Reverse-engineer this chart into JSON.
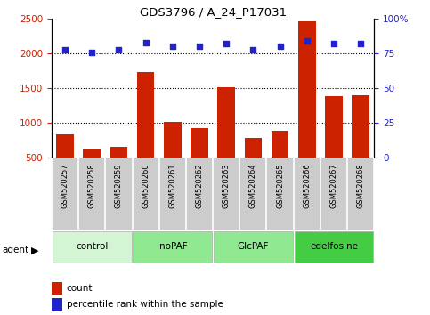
{
  "title": "GDS3796 / A_24_P17031",
  "samples": [
    "GSM520257",
    "GSM520258",
    "GSM520259",
    "GSM520260",
    "GSM520261",
    "GSM520262",
    "GSM520263",
    "GSM520264",
    "GSM520265",
    "GSM520266",
    "GSM520267",
    "GSM520268"
  ],
  "counts": [
    840,
    610,
    660,
    1730,
    1020,
    920,
    1510,
    780,
    890,
    2460,
    1390,
    1400
  ],
  "percentile_ranks": [
    78,
    76,
    78,
    83,
    80,
    80,
    82,
    78,
    80,
    84,
    82,
    82
  ],
  "groups": [
    {
      "label": "control",
      "start": 0,
      "end": 3,
      "color": "#d4f5d4"
    },
    {
      "label": "InoPAF",
      "start": 3,
      "end": 6,
      "color": "#90e890"
    },
    {
      "label": "GlcPAF",
      "start": 6,
      "end": 9,
      "color": "#90e890"
    },
    {
      "label": "edelfosine",
      "start": 9,
      "end": 12,
      "color": "#44cc44"
    }
  ],
  "ylim_left": [
    500,
    2500
  ],
  "ylim_right": [
    0,
    100
  ],
  "yticks_left": [
    500,
    1000,
    1500,
    2000,
    2500
  ],
  "yticks_right": [
    0,
    25,
    50,
    75,
    100
  ],
  "bar_color": "#cc2200",
  "dot_color": "#2222cc",
  "grid_lines": [
    1000,
    1500,
    2000
  ],
  "agent_label": "agent",
  "legend_count": "count",
  "legend_percentile": "percentile rank within the sample",
  "sample_box_color": "#cccccc",
  "fig_width": 4.83,
  "fig_height": 3.54,
  "dpi": 100
}
